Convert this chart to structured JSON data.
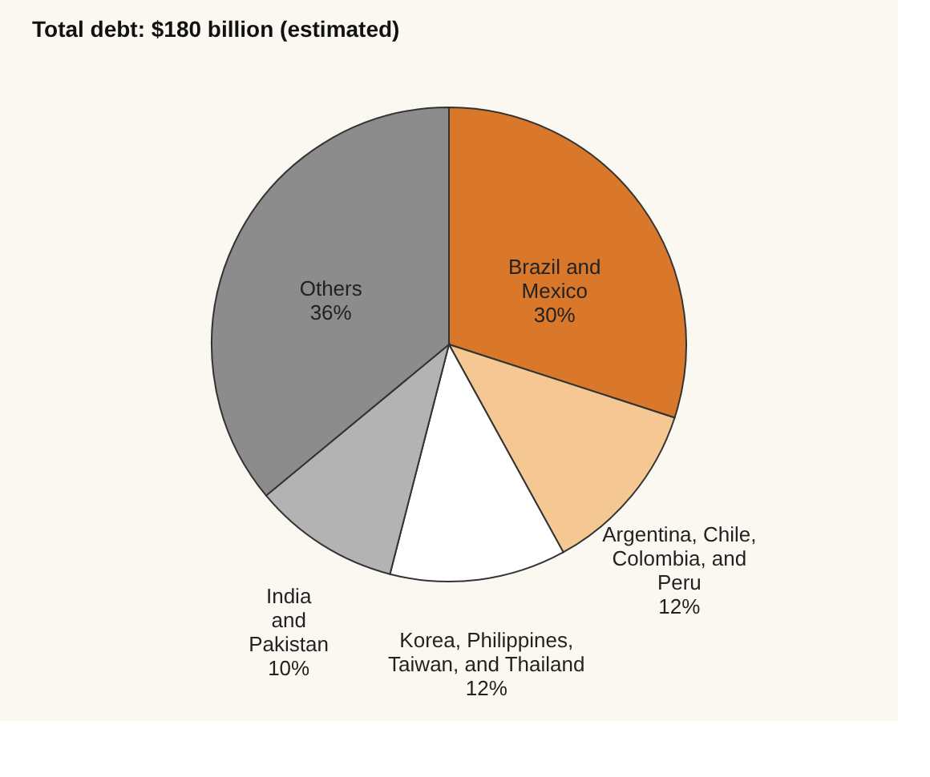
{
  "chart_data": {
    "type": "pie",
    "title": "Total debt: $180 billion  (estimated)",
    "categories": [
      "Brazil and\nMexico",
      "Argentina, Chile,\nColombia, and\nPeru",
      "Korea, Philippines,\nTaiwan, and Thailand",
      "India\nand\nPakistan",
      "Others"
    ],
    "values": [
      30,
      12,
      12,
      10,
      36
    ],
    "value_labels": [
      "30%",
      "12%",
      "12%",
      "10%",
      "36%"
    ],
    "colors": [
      "#d9782a",
      "#f5c893",
      "#ffffff",
      "#b3b3b3",
      "#8c8c8c"
    ]
  }
}
